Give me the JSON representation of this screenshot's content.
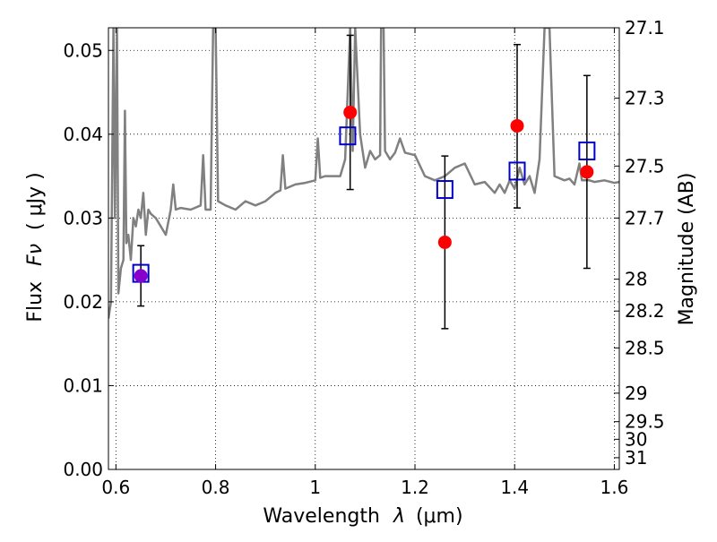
{
  "chart_data": {
    "type": "scatter",
    "xlabel_prefix": "Wavelength",
    "xlabel_symbol": "λ",
    "xlabel_unit": "(μm)",
    "ylabel_left_prefix": "Flux",
    "ylabel_left_symbol": "Fν",
    "ylabel_left_unit": "( μJy )",
    "ylabel_right": "Magnitude (AB)",
    "xlim": [
      0.585,
      1.61
    ],
    "ylim": [
      0.0,
      0.0527
    ],
    "x_ticks": [
      0.6,
      0.8,
      1.0,
      1.2,
      1.4,
      1.6
    ],
    "x_tick_labels": [
      "0.6",
      "0.8",
      "1",
      "1.2",
      "1.4",
      "1.6"
    ],
    "y_ticks": [
      0.0,
      0.01,
      0.02,
      0.03,
      0.04,
      0.05
    ],
    "y_tick_labels": [
      "0.00",
      "0.01",
      "0.02",
      "0.03",
      "0.04",
      "0.05"
    ],
    "right_ticks": [
      {
        "label": "27.1",
        "flux": 0.0527
      },
      {
        "label": "27.3",
        "flux": 0.0443
      },
      {
        "label": "27.5",
        "flux": 0.0362
      },
      {
        "label": "27.7",
        "flux": 0.03
      },
      {
        "label": "28",
        "flux": 0.0227
      },
      {
        "label": "28.2",
        "flux": 0.0189
      },
      {
        "label": "28.5",
        "flux": 0.0145
      },
      {
        "label": "29",
        "flux": 0.0091
      },
      {
        "label": "29.5",
        "flux": 0.0057
      },
      {
        "label": "30",
        "flux": 0.0036
      },
      {
        "label": "31",
        "flux": 0.0014
      }
    ],
    "grid": true,
    "observed_points": [
      {
        "x": 0.65,
        "y": 0.0231,
        "err_low": 0.0195,
        "err_high": 0.0267,
        "color": "#8800cc"
      },
      {
        "x": 1.07,
        "y": 0.0426,
        "err_low": 0.0334,
        "err_high": 0.0518,
        "color": "#ff0000"
      },
      {
        "x": 1.26,
        "y": 0.0271,
        "err_low": 0.0168,
        "err_high": 0.0374,
        "color": "#ff0000"
      },
      {
        "x": 1.405,
        "y": 0.041,
        "err_low": 0.0312,
        "err_high": 0.0507,
        "color": "#ff0000"
      },
      {
        "x": 1.545,
        "y": 0.0355,
        "err_low": 0.024,
        "err_high": 0.047,
        "color": "#ff0000"
      }
    ],
    "model_points": [
      {
        "x": 0.65,
        "y": 0.0234
      },
      {
        "x": 1.065,
        "y": 0.0398
      },
      {
        "x": 1.26,
        "y": 0.0334
      },
      {
        "x": 1.405,
        "y": 0.0356
      },
      {
        "x": 1.545,
        "y": 0.038
      }
    ],
    "spectrum": [
      [
        0.585,
        0.018
      ],
      [
        0.59,
        0.02
      ],
      [
        0.595,
        0.0527
      ],
      [
        0.598,
        0.03
      ],
      [
        0.602,
        0.0527
      ],
      [
        0.605,
        0.021
      ],
      [
        0.61,
        0.024
      ],
      [
        0.615,
        0.025
      ],
      [
        0.618,
        0.0428
      ],
      [
        0.621,
        0.027
      ],
      [
        0.625,
        0.028
      ],
      [
        0.63,
        0.025
      ],
      [
        0.635,
        0.03
      ],
      [
        0.64,
        0.029
      ],
      [
        0.645,
        0.031
      ],
      [
        0.65,
        0.03
      ],
      [
        0.655,
        0.033
      ],
      [
        0.66,
        0.028
      ],
      [
        0.665,
        0.031
      ],
      [
        0.67,
        0.0305
      ],
      [
        0.68,
        0.03
      ],
      [
        0.69,
        0.029
      ],
      [
        0.7,
        0.028
      ],
      [
        0.71,
        0.031
      ],
      [
        0.715,
        0.034
      ],
      [
        0.72,
        0.031
      ],
      [
        0.73,
        0.0312
      ],
      [
        0.75,
        0.031
      ],
      [
        0.77,
        0.0315
      ],
      [
        0.775,
        0.0375
      ],
      [
        0.78,
        0.031
      ],
      [
        0.79,
        0.031
      ],
      [
        0.795,
        0.0527
      ],
      [
        0.8,
        0.0527
      ],
      [
        0.805,
        0.032
      ],
      [
        0.82,
        0.0315
      ],
      [
        0.84,
        0.031
      ],
      [
        0.86,
        0.032
      ],
      [
        0.88,
        0.0315
      ],
      [
        0.9,
        0.032
      ],
      [
        0.92,
        0.033
      ],
      [
        0.93,
        0.0333
      ],
      [
        0.935,
        0.0375
      ],
      [
        0.94,
        0.0335
      ],
      [
        0.96,
        0.034
      ],
      [
        0.98,
        0.0342
      ],
      [
        1.0,
        0.0345
      ],
      [
        1.005,
        0.0395
      ],
      [
        1.01,
        0.0348
      ],
      [
        1.02,
        0.035
      ],
      [
        1.05,
        0.035
      ],
      [
        1.06,
        0.037
      ],
      [
        1.07,
        0.0527
      ],
      [
        1.075,
        0.038
      ],
      [
        1.08,
        0.0527
      ],
      [
        1.09,
        0.04
      ],
      [
        1.1,
        0.036
      ],
      [
        1.11,
        0.038
      ],
      [
        1.12,
        0.037
      ],
      [
        1.13,
        0.0375
      ],
      [
        1.132,
        0.0527
      ],
      [
        1.137,
        0.0527
      ],
      [
        1.14,
        0.038
      ],
      [
        1.15,
        0.037
      ],
      [
        1.16,
        0.0378
      ],
      [
        1.17,
        0.0395
      ],
      [
        1.18,
        0.0378
      ],
      [
        1.2,
        0.0375
      ],
      [
        1.22,
        0.035
      ],
      [
        1.24,
        0.0345
      ],
      [
        1.26,
        0.035
      ],
      [
        1.28,
        0.036
      ],
      [
        1.3,
        0.0365
      ],
      [
        1.32,
        0.034
      ],
      [
        1.34,
        0.0343
      ],
      [
        1.36,
        0.033
      ],
      [
        1.37,
        0.034
      ],
      [
        1.38,
        0.033
      ],
      [
        1.39,
        0.0345
      ],
      [
        1.4,
        0.0335
      ],
      [
        1.41,
        0.036
      ],
      [
        1.42,
        0.034
      ],
      [
        1.43,
        0.035
      ],
      [
        1.44,
        0.033
      ],
      [
        1.45,
        0.037
      ],
      [
        1.46,
        0.0527
      ],
      [
        1.47,
        0.0527
      ],
      [
        1.48,
        0.035
      ],
      [
        1.5,
        0.0345
      ],
      [
        1.51,
        0.0347
      ],
      [
        1.52,
        0.034
      ],
      [
        1.53,
        0.0365
      ],
      [
        1.535,
        0.0345
      ],
      [
        1.55,
        0.0345
      ],
      [
        1.56,
        0.0343
      ],
      [
        1.58,
        0.0345
      ],
      [
        1.6,
        0.0342
      ],
      [
        1.61,
        0.0343
      ]
    ]
  }
}
